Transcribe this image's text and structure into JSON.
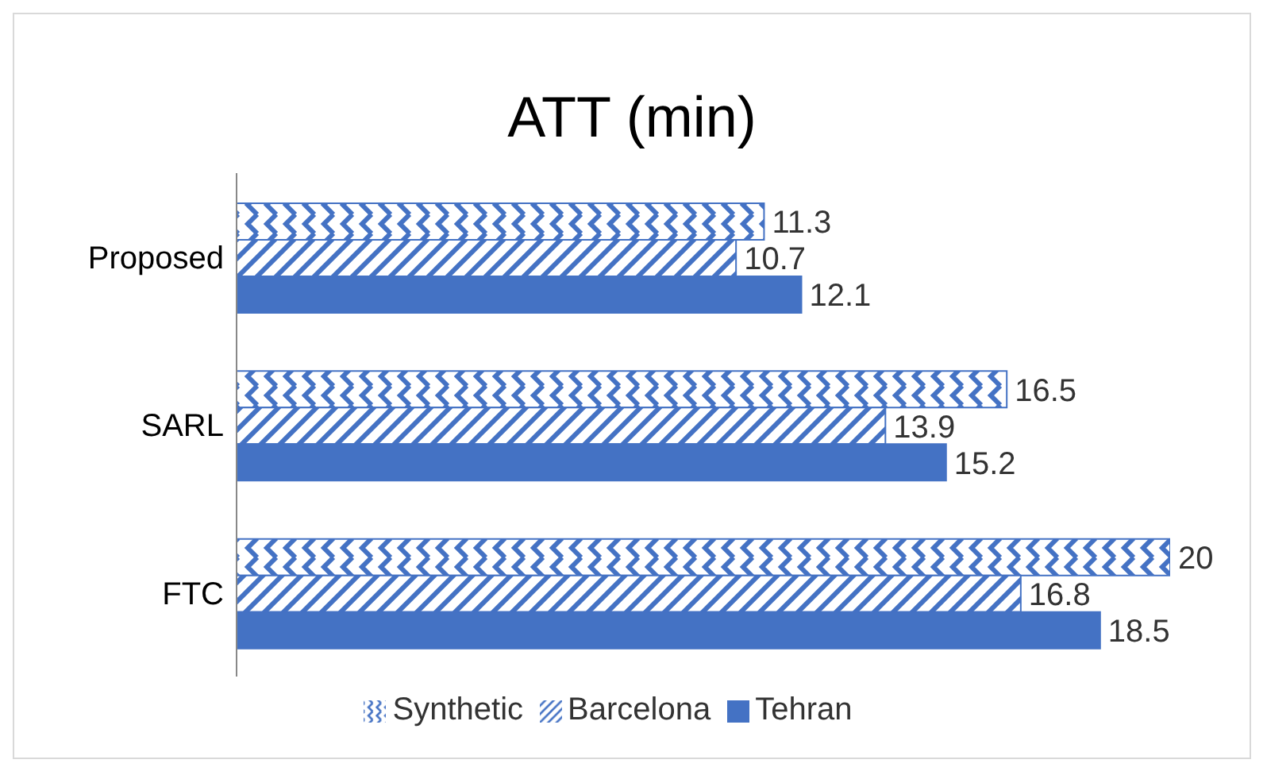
{
  "chart_data": {
    "type": "bar",
    "orientation": "horizontal",
    "title": "ATT (min)",
    "categories": [
      "Proposed",
      "SARL",
      "FTC"
    ],
    "series": [
      {
        "name": "Synthetic",
        "color": "#4472c4",
        "values": [
          11.3,
          16.5,
          20
        ]
      },
      {
        "name": "Barcelona",
        "color": "#4472c4",
        "values": [
          10.7,
          13.9,
          16.8
        ]
      },
      {
        "name": "Tehran",
        "color": "#4472c4",
        "values": [
          12.1,
          15.2,
          18.5
        ]
      }
    ],
    "data_labels": true,
    "legend": "bottom",
    "grid": false
  }
}
